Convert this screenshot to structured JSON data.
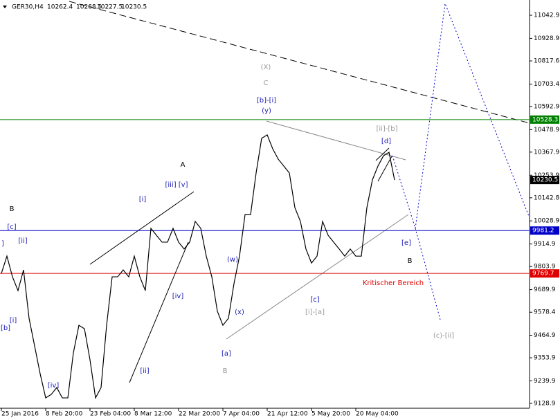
{
  "chart_data": {
    "type": "line",
    "symbol": "GER30,H4",
    "ohlc": [
      10262.4,
      10268.5,
      10227.5,
      10230.5
    ],
    "categories": [
      "25 Jan 2016",
      null,
      null,
      null,
      null,
      null,
      null,
      null,
      "8 Feb 20:00",
      null,
      null,
      null,
      null,
      null,
      null,
      null,
      "23 Feb 04:00",
      null,
      null,
      null,
      null,
      null,
      null,
      null,
      "8 Mar 12:00",
      null,
      null,
      null,
      null,
      null,
      null,
      null,
      "22 Mar 20:00",
      null,
      null,
      null,
      null,
      null,
      null,
      null,
      "7 Apr 04:00",
      null,
      null,
      null,
      null,
      null,
      null,
      null,
      "21 Apr 12:00",
      null,
      null,
      null,
      null,
      null,
      null,
      null,
      "5 May 20:00",
      null,
      null,
      null,
      null,
      null,
      null,
      null,
      "20 May 04:00",
      null,
      null,
      null,
      null,
      null,
      null,
      null
    ],
    "values": [
      9770,
      9855,
      9753,
      9685,
      9787,
      9548,
      9412,
      9275,
      9156,
      9173,
      9207,
      9156,
      9156,
      9378,
      9514,
      9497,
      9344,
      9156,
      9207,
      9514,
      9753,
      9753,
      9787,
      9753,
      9855,
      9753,
      9685,
      9992,
      9958,
      9924,
      9924,
      9992,
      9924,
      9890,
      9924,
      10026,
      9992,
      9855,
      9753,
      9583,
      9514,
      9548,
      9719,
      9855,
      10060,
      10060,
      10265,
      10436,
      10453,
      10384,
      10333,
      10299,
      10265,
      10094,
      10026,
      9890,
      9821,
      9855,
      10026,
      9958,
      9924,
      9890,
      9855,
      9890,
      9855,
      9855,
      10094,
      10231,
      10299,
      10350,
      10367,
      10230.5
    ],
    "color": "#000000",
    "ylim": [
      9105,
      11118
    ],
    "yticks": [
      11042.9,
      10928.9,
      10817.6,
      10703.4,
      10592.9,
      10478.9,
      10367.9,
      10253.9,
      10142.8,
      10028.9,
      9914.9,
      9803.9,
      9689.9,
      9578.4,
      9464.9,
      9353.9,
      9239.9,
      9128.9
    ],
    "levels": [
      {
        "value": 10528.3,
        "color": "#008000"
      },
      {
        "value": 9981.2,
        "color": "#0000c8"
      },
      {
        "value": 9769.7,
        "color": "#e00000"
      }
    ],
    "current_price": 10230.5,
    "annotations": [
      "B",
      "[c]",
      "[ii]",
      "]",
      "[i]",
      "[b]",
      "[iv]",
      "[i]",
      "[iii] [v]",
      "A",
      "[iv]",
      "[ii]",
      "(w)",
      "(x)",
      "[a]",
      "B",
      "(X)",
      "C",
      "[b]-[i]",
      "(y)",
      "[c]",
      "[i]-[a]",
      "[ii]-[b]",
      "[d]",
      "[e]",
      "B",
      "Kritischer Bereich",
      "(c)-[ii]"
    ]
  }
}
